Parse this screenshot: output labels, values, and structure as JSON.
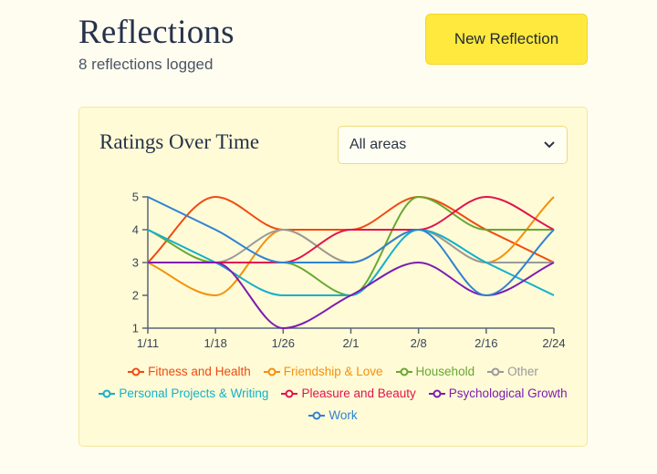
{
  "header": {
    "title": "Reflections",
    "subtitle": "8 reflections logged",
    "new_button_label": "New Reflection"
  },
  "chart_card": {
    "title": "Ratings Over Time",
    "filter": {
      "selected": "All areas"
    }
  },
  "colors": {
    "accent_button": "#ffe93e",
    "card_background": "#fffbd6",
    "axis": "#5a6578"
  },
  "chart_data": {
    "type": "line",
    "x": [
      "1/11",
      "1/18",
      "1/26",
      "2/1",
      "2/8",
      "2/16",
      "2/24"
    ],
    "ylim": [
      1,
      5
    ],
    "yticks": [
      1,
      2,
      3,
      4,
      5
    ],
    "grid": false,
    "legend_position": "bottom",
    "series": [
      {
        "name": "Fitness and Health",
        "color": "#ef4a12",
        "values": [
          3,
          5,
          4,
          4,
          5,
          4,
          3
        ]
      },
      {
        "name": "Friendship & Love",
        "color": "#f5900c",
        "values": [
          3,
          2,
          4,
          3,
          4,
          3,
          5
        ]
      },
      {
        "name": "Household",
        "color": "#66a832",
        "values": [
          4,
          3,
          3,
          2,
          5,
          4,
          4
        ]
      },
      {
        "name": "Other",
        "color": "#9a9a9a",
        "values": [
          3,
          3,
          4,
          3,
          4,
          3,
          3
        ]
      },
      {
        "name": "Personal Projects & Writing",
        "color": "#12b0cc",
        "values": [
          4,
          3,
          2,
          2,
          4,
          3,
          2
        ]
      },
      {
        "name": "Pleasure and Beauty",
        "color": "#e1134f",
        "values": [
          3,
          3,
          3,
          4,
          4,
          5,
          4
        ]
      },
      {
        "name": "Psychological Growth",
        "color": "#7d1cb3",
        "values": [
          3,
          3,
          1,
          2,
          3,
          2,
          3
        ]
      },
      {
        "name": "Work",
        "color": "#2f82d4",
        "values": [
          5,
          4,
          3,
          3,
          4,
          2,
          4
        ]
      }
    ]
  }
}
